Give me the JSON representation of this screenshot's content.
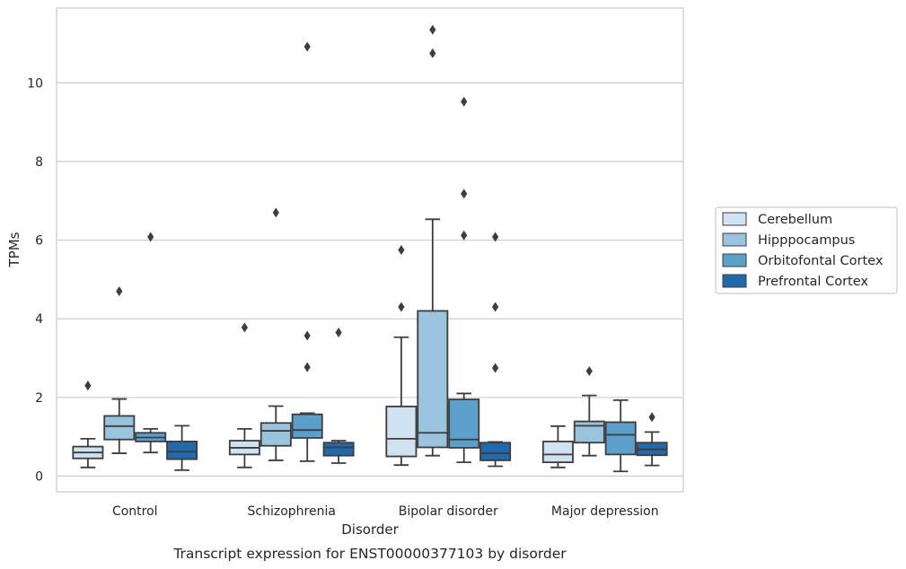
{
  "chart_data": {
    "type": "box",
    "title": "Transcript expression for ENST00000377103 by disorder",
    "xlabel": "Disorder",
    "ylabel": "TPMs",
    "ylim": [
      -0.4,
      11.9
    ],
    "yticks": [
      0,
      2,
      4,
      6,
      8,
      10
    ],
    "grid": "horizontal",
    "legend_position": "right",
    "categories": [
      "Control",
      "Schizophrenia",
      "Bipolar disorder",
      "Major depression"
    ],
    "series": [
      {
        "name": "Cerebellum",
        "color": "#d0e1f2",
        "boxes": [
          {
            "whisker_low": 0.22,
            "q1": 0.45,
            "median": 0.6,
            "q3": 0.75,
            "whisker_high": 0.95,
            "outliers": [
              2.3
            ]
          },
          {
            "whisker_low": 0.22,
            "q1": 0.55,
            "median": 0.72,
            "q3": 0.9,
            "whisker_high": 1.2,
            "outliers": [
              3.78
            ]
          },
          {
            "whisker_low": 0.28,
            "q1": 0.5,
            "median": 0.95,
            "q3": 1.77,
            "whisker_high": 3.53,
            "outliers": [
              4.3,
              5.75
            ]
          },
          {
            "whisker_low": 0.22,
            "q1": 0.35,
            "median": 0.55,
            "q3": 0.88,
            "whisker_high": 1.27,
            "outliers": []
          }
        ]
      },
      {
        "name": "Hipppocampus",
        "color": "#9ac3dd",
        "boxes": [
          {
            "whisker_low": 0.58,
            "q1": 0.93,
            "median": 1.27,
            "q3": 1.53,
            "whisker_high": 1.96,
            "outliers": [
              4.7
            ]
          },
          {
            "whisker_low": 0.4,
            "q1": 0.77,
            "median": 1.15,
            "q3": 1.35,
            "whisker_high": 1.78,
            "outliers": [
              6.7
            ]
          },
          {
            "whisker_low": 0.52,
            "q1": 0.73,
            "median": 1.1,
            "q3": 4.2,
            "whisker_high": 6.53,
            "outliers": [
              10.75,
              11.35
            ]
          },
          {
            "whisker_low": 0.52,
            "q1": 0.85,
            "median": 1.28,
            "q3": 1.39,
            "whisker_high": 2.05,
            "outliers": [
              2.67
            ]
          }
        ]
      },
      {
        "name": "Orbitofontal Cortex",
        "color": "#5b9fcb",
        "boxes": [
          {
            "whisker_low": 0.6,
            "q1": 0.88,
            "median": 0.98,
            "q3": 1.1,
            "whisker_high": 1.2,
            "outliers": [
              6.08
            ]
          },
          {
            "whisker_low": 0.38,
            "q1": 0.97,
            "median": 1.17,
            "q3": 1.57,
            "whisker_high": 1.6,
            "outliers": [
              2.77,
              3.57,
              10.92
            ]
          },
          {
            "whisker_low": 0.35,
            "q1": 0.72,
            "median": 0.93,
            "q3": 1.95,
            "whisker_high": 2.1,
            "outliers": [
              6.12,
              7.18,
              9.52
            ]
          },
          {
            "whisker_low": 0.12,
            "q1": 0.55,
            "median": 1.05,
            "q3": 1.37,
            "whisker_high": 1.93,
            "outliers": []
          }
        ]
      },
      {
        "name": "Prefrontal Cortex",
        "color": "#2269ac",
        "boxes": [
          {
            "whisker_low": 0.15,
            "q1": 0.43,
            "median": 0.62,
            "q3": 0.88,
            "whisker_high": 1.28,
            "outliers": []
          },
          {
            "whisker_low": 0.33,
            "q1": 0.52,
            "median": 0.73,
            "q3": 0.85,
            "whisker_high": 0.9,
            "outliers": [
              3.65
            ]
          },
          {
            "whisker_low": 0.25,
            "q1": 0.4,
            "median": 0.58,
            "q3": 0.85,
            "whisker_high": 0.87,
            "outliers": [
              2.75,
              4.3,
              6.08
            ]
          },
          {
            "whisker_low": 0.27,
            "q1": 0.53,
            "median": 0.68,
            "q3": 0.85,
            "whisker_high": 1.12,
            "outliers": [
              1.5
            ]
          }
        ]
      }
    ]
  }
}
